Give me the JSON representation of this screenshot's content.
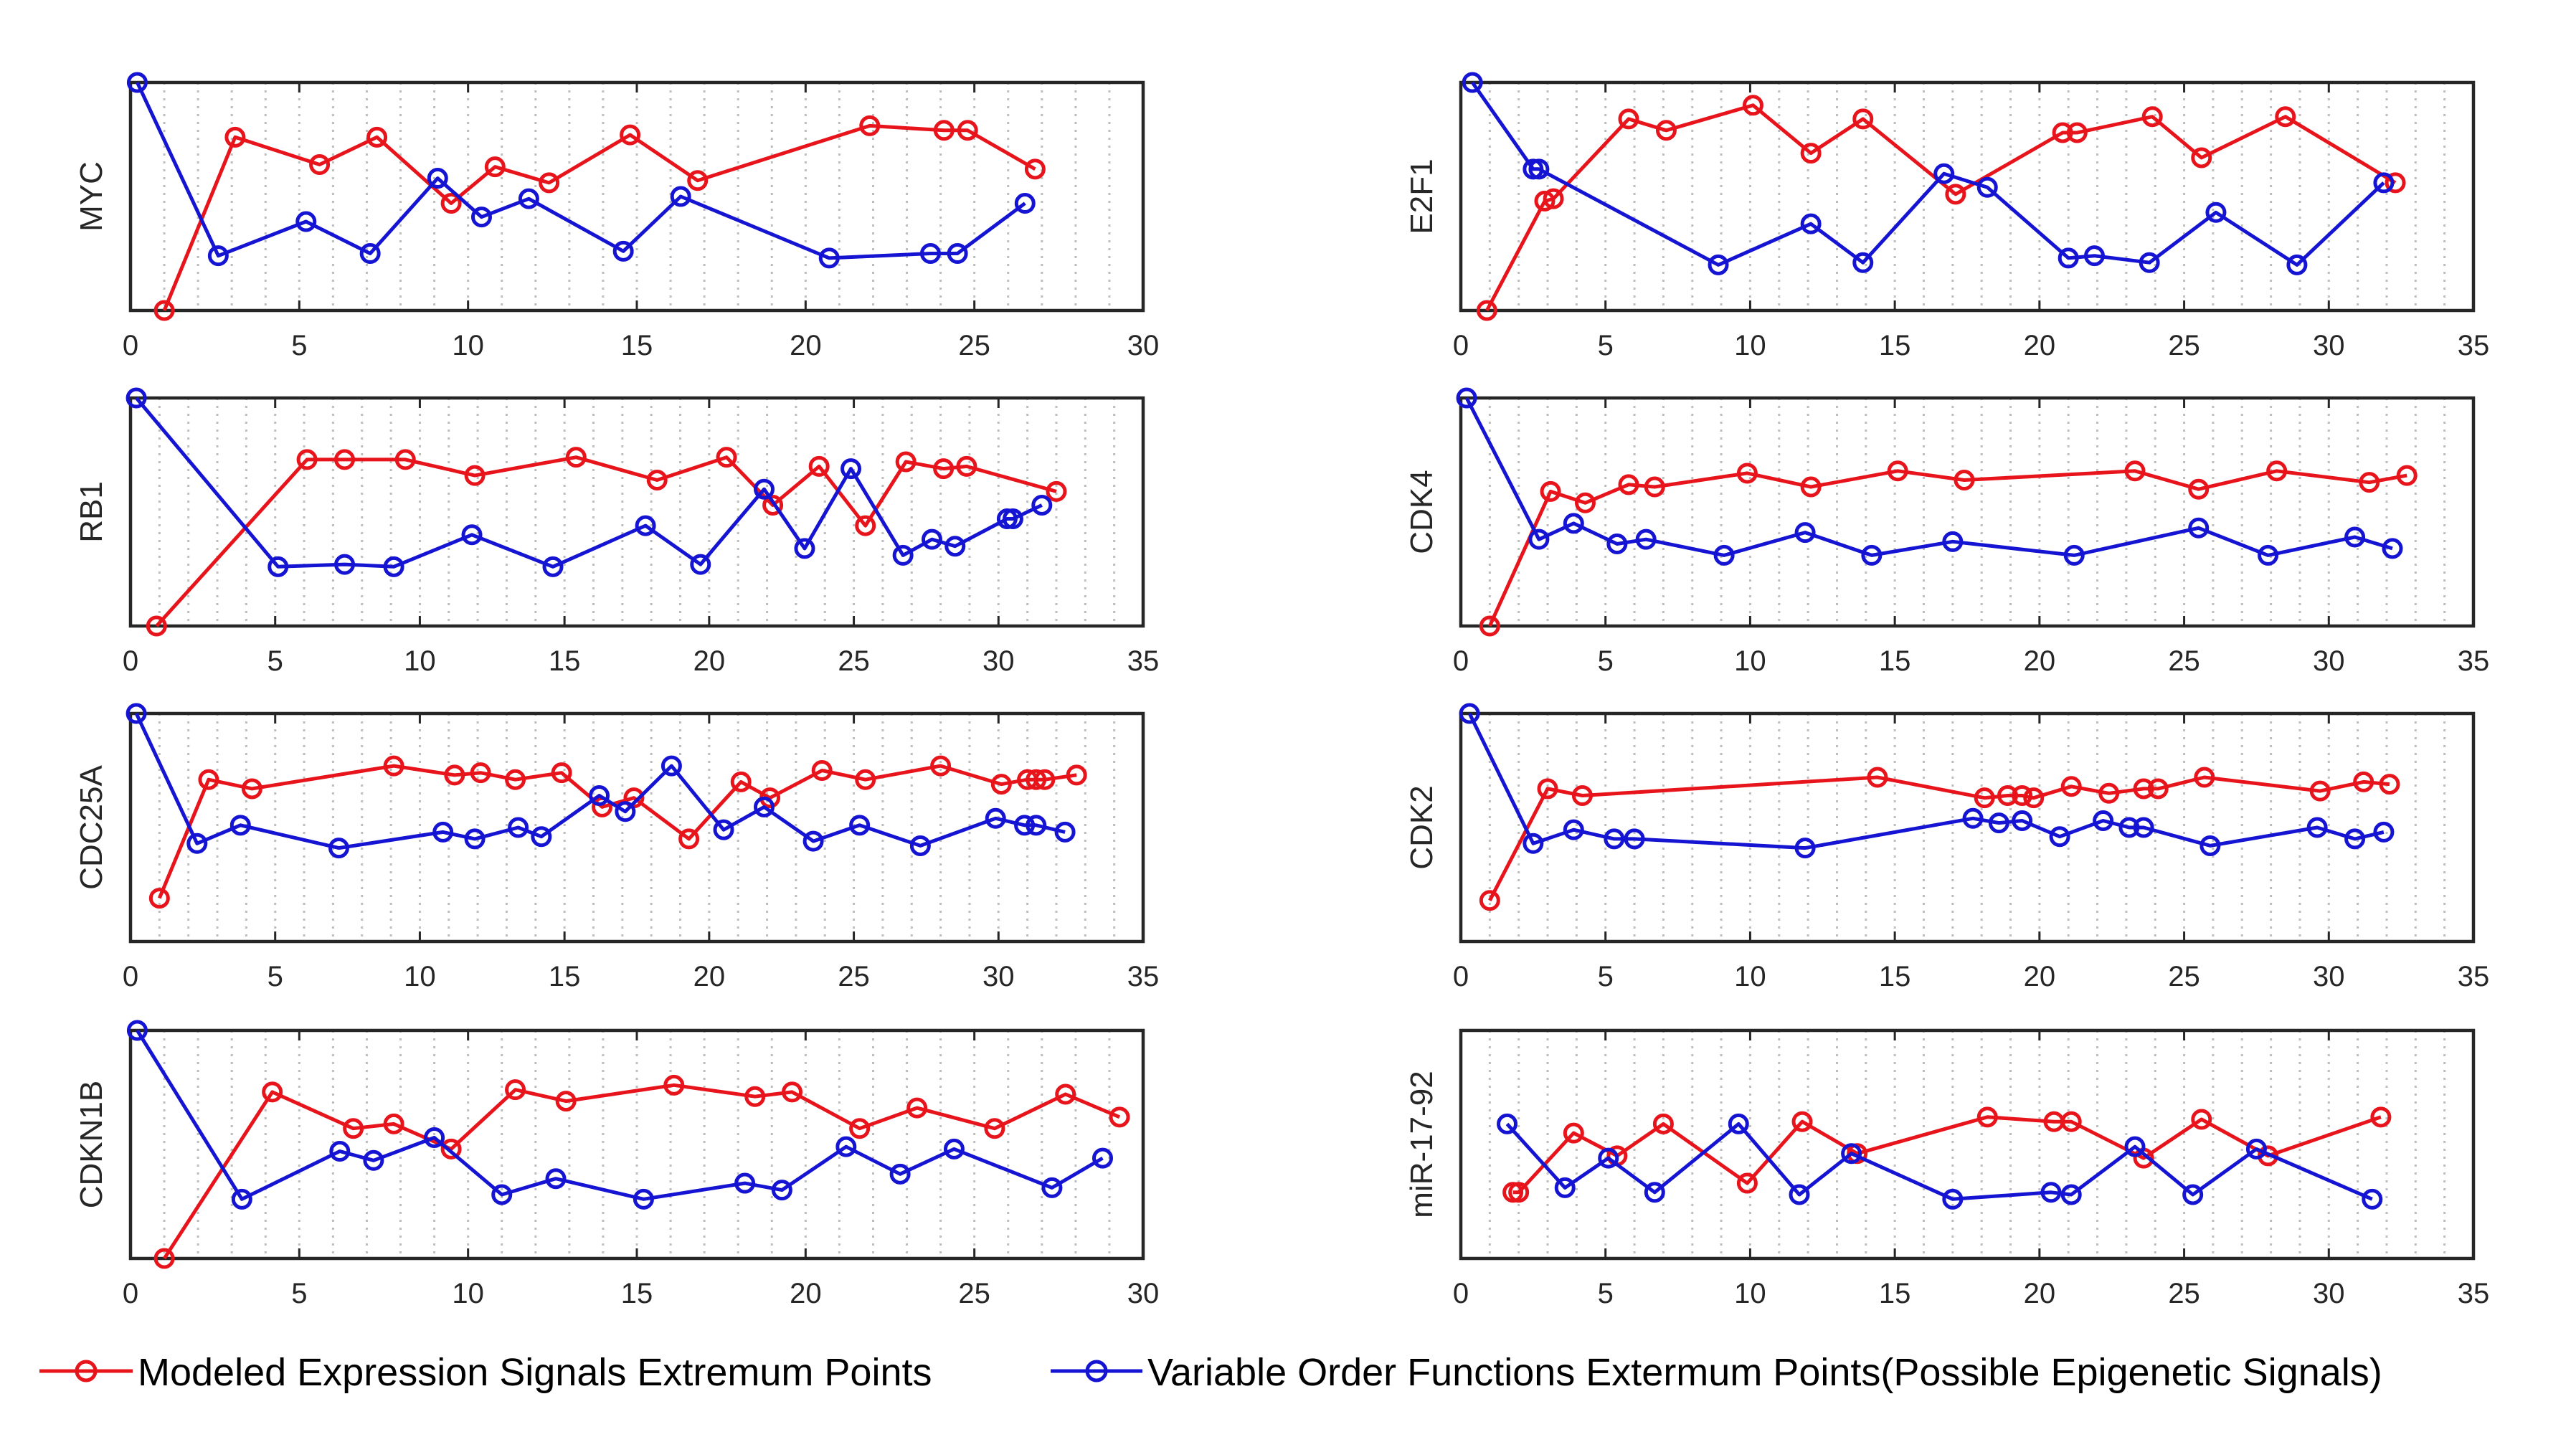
{
  "colors": {
    "modeled": "#e8141c",
    "variable": "#1414d2",
    "axis": "#262626",
    "grid": "#bdbdbd"
  },
  "legend": {
    "modeled": "Modeled Expression Signals Extremum Points",
    "variable": "Variable Order Functions Extermum Points(Possible Epigenetic Signals)"
  },
  "chart_data": [
    {
      "type": "line",
      "ylabel": "MYC",
      "xlim": [
        0,
        30
      ],
      "ylim": [
        0,
        1
      ],
      "grid": "x-dotted",
      "xticks": [
        0,
        5,
        10,
        15,
        20,
        25,
        30
      ],
      "series": [
        {
          "name": "Modeled Expression Signals Extremum Points",
          "x": [
            1,
            3.1,
            5.6,
            7.3,
            9.5,
            10.8,
            12.4,
            14.8,
            16.8,
            21.9,
            24.1,
            24.8,
            26.8
          ],
          "y": [
            0.0,
            0.76,
            0.64,
            0.76,
            0.47,
            0.63,
            0.56,
            0.77,
            0.57,
            0.81,
            0.79,
            0.79,
            0.62
          ]
        },
        {
          "name": "Variable Order Functions Extermum Points(Possible Epigenetic Signals)",
          "x": [
            0.2,
            2.6,
            5.2,
            7.1,
            9.1,
            10.4,
            11.8,
            14.6,
            16.3,
            20.7,
            23.7,
            24.5,
            26.5
          ],
          "y": [
            1.0,
            0.24,
            0.39,
            0.25,
            0.58,
            0.41,
            0.49,
            0.26,
            0.5,
            0.23,
            0.25,
            0.25,
            0.47
          ]
        }
      ]
    },
    {
      "type": "line",
      "ylabel": "E2F1",
      "xlim": [
        0,
        35
      ],
      "ylim": [
        0,
        1
      ],
      "grid": "x-dotted",
      "xticks": [
        0,
        5,
        10,
        15,
        20,
        25,
        30,
        35
      ],
      "series": [
        {
          "name": "Modeled Expression Signals Extremum Points",
          "x": [
            0.9,
            2.9,
            3.2,
            5.8,
            7.1,
            10.1,
            12.1,
            13.9,
            17.1,
            20.8,
            21.3,
            23.9,
            25.6,
            28.5,
            32.3
          ],
          "y": [
            0.0,
            0.48,
            0.49,
            0.84,
            0.79,
            0.9,
            0.69,
            0.84,
            0.51,
            0.78,
            0.78,
            0.85,
            0.67,
            0.85,
            0.56
          ]
        },
        {
          "name": "Variable Order Functions Extermum Points(Possible Epigenetic Signals)",
          "x": [
            0.4,
            2.5,
            2.7,
            8.9,
            12.1,
            13.9,
            16.7,
            18.2,
            21,
            21.9,
            23.8,
            26.1,
            28.9,
            31.9
          ],
          "y": [
            1.0,
            0.62,
            0.62,
            0.2,
            0.38,
            0.21,
            0.6,
            0.54,
            0.23,
            0.24,
            0.21,
            0.43,
            0.2,
            0.56
          ]
        }
      ]
    },
    {
      "type": "line",
      "ylabel": "RB1",
      "xlim": [
        0,
        35
      ],
      "ylim": [
        0,
        1
      ],
      "grid": "x-dotted",
      "xticks": [
        0,
        5,
        10,
        15,
        20,
        25,
        30,
        35
      ],
      "series": [
        {
          "name": "Modeled Expression Signals Extremum Points",
          "x": [
            0.9,
            6.1,
            7.4,
            9.5,
            11.9,
            15.4,
            18.2,
            20.6,
            22.2,
            23.8,
            25.4,
            26.8,
            28.1,
            28.9,
            32
          ],
          "y": [
            0.0,
            0.73,
            0.73,
            0.73,
            0.66,
            0.74,
            0.64,
            0.74,
            0.53,
            0.7,
            0.44,
            0.72,
            0.69,
            0.7,
            0.59
          ]
        },
        {
          "name": "Variable Order Functions Extermum Points(Possible Epigenetic Signals)",
          "x": [
            0.2,
            5.1,
            7.4,
            9.1,
            11.8,
            14.6,
            17.8,
            19.7,
            21.9,
            23.3,
            24.9,
            26.7,
            27.7,
            28.5,
            30.3,
            30.5,
            31.5
          ],
          "y": [
            1.0,
            0.26,
            0.27,
            0.26,
            0.4,
            0.26,
            0.44,
            0.27,
            0.6,
            0.34,
            0.69,
            0.31,
            0.38,
            0.35,
            0.47,
            0.47,
            0.53
          ]
        }
      ]
    },
    {
      "type": "line",
      "ylabel": "CDK4",
      "xlim": [
        0,
        35
      ],
      "ylim": [
        0,
        1
      ],
      "grid": "x-dotted",
      "xticks": [
        0,
        5,
        10,
        15,
        20,
        25,
        30,
        35
      ],
      "series": [
        {
          "name": "Modeled Expression Signals Extremum Points",
          "x": [
            1,
            3.1,
            4.3,
            5.8,
            6.7,
            9.9,
            12.1,
            15.1,
            17.4,
            23.3,
            25.5,
            28.2,
            31.4,
            32.7
          ],
          "y": [
            0.0,
            0.59,
            0.54,
            0.62,
            0.61,
            0.67,
            0.61,
            0.68,
            0.64,
            0.68,
            0.6,
            0.68,
            0.63,
            0.66
          ]
        },
        {
          "name": "Variable Order Functions Extermum Points(Possible Epigenetic Signals)",
          "x": [
            0.2,
            2.7,
            3.9,
            5.4,
            6.4,
            9.1,
            11.9,
            14.2,
            17,
            21.2,
            25.5,
            27.9,
            30.9,
            32.2
          ],
          "y": [
            1.0,
            0.38,
            0.45,
            0.36,
            0.38,
            0.31,
            0.41,
            0.31,
            0.37,
            0.31,
            0.43,
            0.31,
            0.39,
            0.34
          ]
        }
      ]
    },
    {
      "type": "line",
      "ylabel": "CDC25A",
      "xlim": [
        0,
        35
      ],
      "ylim": [
        0,
        1
      ],
      "grid": "x-dotted",
      "xticks": [
        0,
        5,
        10,
        15,
        20,
        25,
        30,
        35
      ],
      "series": [
        {
          "name": "Modeled Expression Signals Extremum Points",
          "x": [
            1,
            2.7,
            4.2,
            9.1,
            11.2,
            12.1,
            13.3,
            14.9,
            16.3,
            17.4,
            19.3,
            21.1,
            22.1,
            23.9,
            25.4,
            28,
            30.1,
            31,
            31.3,
            31.6,
            32.7
          ],
          "y": [
            0.19,
            0.71,
            0.67,
            0.77,
            0.73,
            0.74,
            0.71,
            0.74,
            0.59,
            0.63,
            0.45,
            0.7,
            0.63,
            0.75,
            0.71,
            0.77,
            0.69,
            0.71,
            0.71,
            0.71,
            0.73
          ]
        },
        {
          "name": "Variable Order Functions Extermum Points(Possible Epigenetic Signals)",
          "x": [
            0.2,
            2.3,
            3.8,
            7.2,
            10.8,
            11.9,
            13.4,
            14.2,
            16.2,
            17.1,
            18.7,
            20.5,
            21.9,
            23.6,
            25.2,
            27.3,
            29.9,
            30.9,
            31.3,
            32.3
          ],
          "y": [
            1.0,
            0.43,
            0.51,
            0.41,
            0.48,
            0.45,
            0.5,
            0.46,
            0.64,
            0.57,
            0.77,
            0.49,
            0.59,
            0.44,
            0.51,
            0.42,
            0.54,
            0.51,
            0.51,
            0.48
          ]
        }
      ]
    },
    {
      "type": "line",
      "ylabel": "CDK2",
      "xlim": [
        0,
        35
      ],
      "ylim": [
        0,
        1
      ],
      "grid": "x-dotted",
      "xticks": [
        0,
        5,
        10,
        15,
        20,
        25,
        30,
        35
      ],
      "series": [
        {
          "name": "Modeled Expression Signals Extremum Points",
          "x": [
            1,
            3,
            4.2,
            14.4,
            18.1,
            18.9,
            19.4,
            19.8,
            21.1,
            22.4,
            23.6,
            24.1,
            25.7,
            29.7,
            31.2,
            32.1
          ],
          "y": [
            0.18,
            0.67,
            0.64,
            0.72,
            0.63,
            0.64,
            0.64,
            0.63,
            0.68,
            0.65,
            0.67,
            0.67,
            0.72,
            0.66,
            0.7,
            0.69
          ]
        },
        {
          "name": "Variable Order Functions Extermum Points(Possible Epigenetic Signals)",
          "x": [
            0.3,
            2.5,
            3.9,
            5.3,
            6,
            11.9,
            17.7,
            18.6,
            19.4,
            20.7,
            22.2,
            23.1,
            23.6,
            25.9,
            29.6,
            30.9,
            31.9
          ],
          "y": [
            1.0,
            0.43,
            0.49,
            0.45,
            0.45,
            0.41,
            0.54,
            0.52,
            0.53,
            0.46,
            0.53,
            0.5,
            0.5,
            0.42,
            0.5,
            0.45,
            0.48
          ]
        }
      ]
    },
    {
      "type": "line",
      "ylabel": "CDKN1B",
      "xlim": [
        0,
        30
      ],
      "ylim": [
        0,
        1
      ],
      "grid": "x-dotted",
      "xticks": [
        0,
        5,
        10,
        15,
        20,
        25,
        30
      ],
      "series": [
        {
          "name": "Modeled Expression Signals Extremum Points",
          "x": [
            1,
            4.2,
            6.6,
            7.8,
            9.5,
            11.4,
            12.9,
            16.1,
            18.5,
            19.6,
            21.6,
            23.3,
            25.6,
            27.7,
            29.3
          ],
          "y": [
            0.0,
            0.73,
            0.57,
            0.59,
            0.48,
            0.74,
            0.69,
            0.76,
            0.71,
            0.73,
            0.57,
            0.66,
            0.57,
            0.72,
            0.62
          ]
        },
        {
          "name": "Variable Order Functions Extermum Points(Possible Epigenetic Signals)",
          "x": [
            0.2,
            3.3,
            6.2,
            7.2,
            9,
            11,
            12.6,
            15.2,
            18.2,
            19.3,
            21.2,
            22.8,
            24.4,
            27.3,
            28.8
          ],
          "y": [
            1.0,
            0.26,
            0.47,
            0.43,
            0.53,
            0.28,
            0.35,
            0.26,
            0.33,
            0.3,
            0.49,
            0.37,
            0.48,
            0.31,
            0.44
          ]
        }
      ]
    },
    {
      "type": "line",
      "ylabel": "miR-17-92",
      "xlim": [
        0,
        35
      ],
      "ylim": [
        0,
        1
      ],
      "grid": "x-dotted",
      "xticks": [
        0,
        5,
        10,
        15,
        20,
        25,
        30,
        35
      ],
      "series": [
        {
          "name": "Modeled Expression Signals Extremum Points",
          "x": [
            1.8,
            2,
            3.9,
            5.4,
            7,
            9.9,
            11.8,
            13.7,
            18.2,
            20.5,
            21.1,
            23.6,
            25.6,
            27.9,
            31.8
          ],
          "y": [
            0.29,
            0.29,
            0.55,
            0.45,
            0.59,
            0.33,
            0.6,
            0.46,
            0.62,
            0.6,
            0.6,
            0.44,
            0.61,
            0.45,
            0.62
          ]
        },
        {
          "name": "Variable Order Functions Extermum Points(Possible Epigenetic Signals)",
          "x": [
            1.6,
            3.6,
            5.1,
            6.7,
            9.6,
            11.7,
            13.5,
            17,
            20.4,
            21.1,
            23.3,
            25.3,
            27.5,
            31.5
          ],
          "y": [
            0.59,
            0.31,
            0.44,
            0.29,
            0.59,
            0.28,
            0.46,
            0.26,
            0.29,
            0.28,
            0.49,
            0.28,
            0.48,
            0.26
          ]
        }
      ]
    }
  ]
}
